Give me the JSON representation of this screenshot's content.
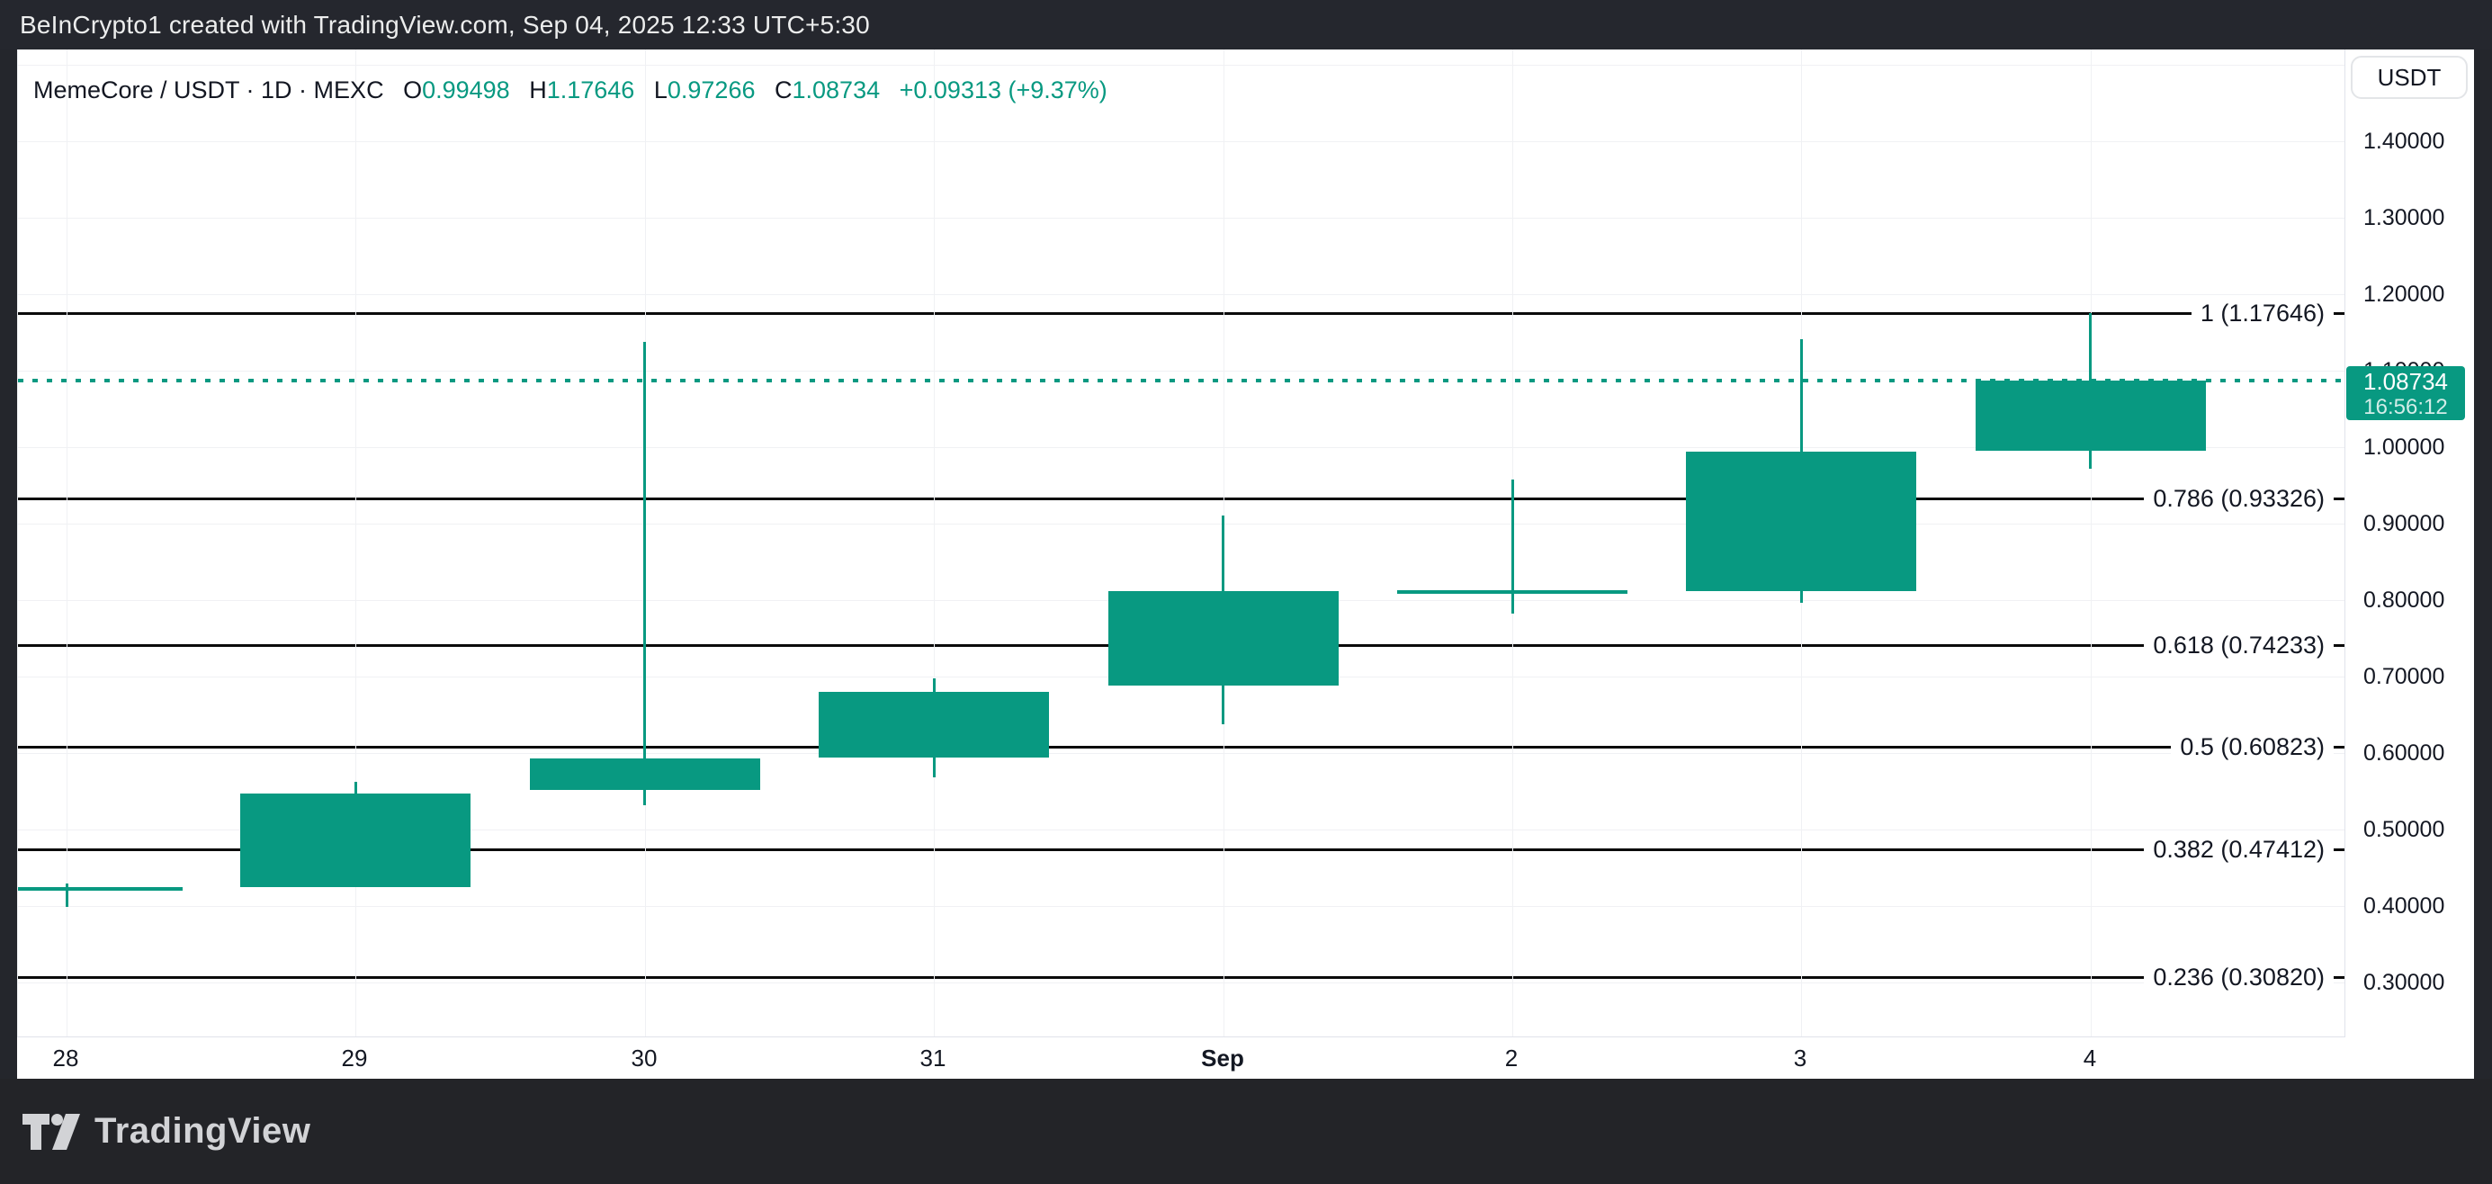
{
  "top_bar": {
    "attribution": "BeInCrypto1 created with TradingView.com, Sep 04, 2025 12:33 UTC+5:30"
  },
  "header": {
    "symbol_text": "MemeCore / USDT · 1D · MEXC",
    "o_label": "O",
    "o_value": "0.99498",
    "h_label": "H",
    "h_value": "1.17646",
    "l_label": "L",
    "l_value": "0.97266",
    "c_label": "C",
    "c_value": "1.08734",
    "change": "+0.09313 (+9.37%)"
  },
  "currency_button": "USDT",
  "price_label": {
    "price": "1.08734",
    "countdown": "16:56:12"
  },
  "watermark": "TradingView",
  "colors": {
    "up": "#089981",
    "fib_line": "#0a0a0a",
    "grid": "#f0f1f4",
    "frame_dark": "#24262c",
    "badge": "#089981"
  },
  "chart_data": {
    "type": "candlestick",
    "title": "MemeCore / USDT · 1D · MEXC",
    "interval": "1D",
    "legend_position": "none",
    "grid": true,
    "x_tick_labels": [
      "28",
      "29",
      "30",
      "31",
      "Sep",
      "2",
      "3",
      "4"
    ],
    "bold_x_tick": "Sep",
    "y_tick_labels": [
      "1.40000",
      "1.30000",
      "1.20000",
      "1.10000",
      "1.00000",
      "0.90000",
      "0.80000",
      "0.70000",
      "0.60000",
      "0.50000",
      "0.40000",
      "0.30000"
    ],
    "y_tick_prices": [
      1.4,
      1.3,
      1.2,
      1.1,
      1.0,
      0.9,
      0.8,
      0.7,
      0.6,
      0.5,
      0.4,
      0.3
    ],
    "grid_prices": [
      1.5,
      1.4,
      1.3,
      1.2,
      1.1,
      1.0,
      0.9,
      0.8,
      0.7,
      0.6,
      0.5,
      0.4,
      0.3
    ],
    "visible_price_range": [
      0.245,
      1.52
    ],
    "candles": [
      {
        "date": "Aug 28",
        "open": 0.4247,
        "high": 0.4295,
        "low": 0.3985,
        "close": 0.4247
      },
      {
        "date": "Aug 29",
        "open": 0.4247,
        "high": 0.563,
        "low": 0.4247,
        "close": 0.548
      },
      {
        "date": "Aug 30",
        "open": 0.552,
        "high": 1.138,
        "low": 0.532,
        "close": 0.594
      },
      {
        "date": "Aug 31",
        "open": 0.594,
        "high": 0.698,
        "low": 0.568,
        "close": 0.681
      },
      {
        "date": "Sep 1",
        "open": 0.688,
        "high": 0.911,
        "low": 0.637,
        "close": 0.812
      },
      {
        "date": "Sep 2",
        "open": 0.814,
        "high": 0.958,
        "low": 0.782,
        "close": 0.814
      },
      {
        "date": "Sep 3",
        "open": 0.812,
        "high": 1.142,
        "low": 0.797,
        "close": 0.995
      },
      {
        "date": "Sep 4",
        "open": 0.99498,
        "high": 1.17646,
        "low": 0.97266,
        "close": 1.08734
      }
    ],
    "fib_levels": [
      {
        "level": "1",
        "price": 1.17646,
        "label": "1 (1.17646)"
      },
      {
        "level": "0.786",
        "price": 0.93326,
        "label": "0.786 (0.93326)"
      },
      {
        "level": "0.618",
        "price": 0.74233,
        "label": "0.618 (0.74233)"
      },
      {
        "level": "0.5",
        "price": 0.60823,
        "label": "0.5 (0.60823)"
      },
      {
        "level": "0.382",
        "price": 0.47412,
        "label": "0.382 (0.47412)"
      },
      {
        "level": "0.236",
        "price": 0.3082,
        "label": "0.236 (0.30820)"
      }
    ],
    "last_price_line": 1.08734
  }
}
